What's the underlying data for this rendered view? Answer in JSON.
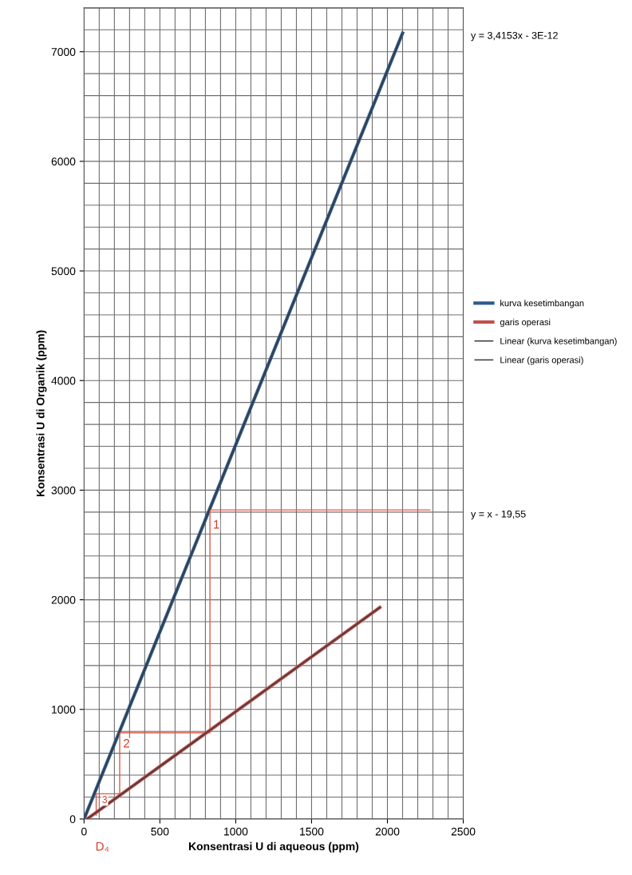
{
  "chart_data": {
    "type": "line",
    "xlabel": "Konsentrasi U di aqueous (ppm)",
    "ylabel": "Konsentrasi U di Organik (ppm)",
    "xlim": [
      0,
      2500
    ],
    "xticks": [
      0,
      500,
      1000,
      1500,
      2000,
      2500
    ],
    "ylim": [
      0,
      7400
    ],
    "yticks": [
      0,
      1000,
      2000,
      3000,
      4000,
      5000,
      6000,
      7000
    ],
    "grid": true,
    "legend": "right",
    "series": [
      {
        "name": "kurva kesetimbangan",
        "color": "#2e5b8f",
        "x": [
          0,
          2100
        ],
        "values": [
          0,
          7170
        ]
      },
      {
        "name": "garis operasi",
        "color": "#c0504d",
        "x": [
          20,
          1950
        ],
        "values": [
          0,
          1930
        ]
      },
      {
        "name": "Linear (kurva kesetimbangan)",
        "color": "#3a3a3a",
        "x": [
          0,
          2100
        ],
        "values": [
          0,
          7170
        ]
      },
      {
        "name": "Linear (garis operasi)",
        "color": "#3a3a3a",
        "x": [
          20,
          1950
        ],
        "values": [
          0,
          1930
        ]
      },
      {
        "color": "#e05a4a",
        "x": [
          2280,
          830,
          830,
          235,
          235,
          80,
          80
        ],
        "values": [
          2820,
          2820,
          787,
          787,
          230,
          230,
          35
        ]
      }
    ],
    "annotations": [
      "y = 3,4153x - 3E-12",
      "y = x - 19,55",
      "1",
      "2",
      "3",
      "D₄"
    ]
  }
}
